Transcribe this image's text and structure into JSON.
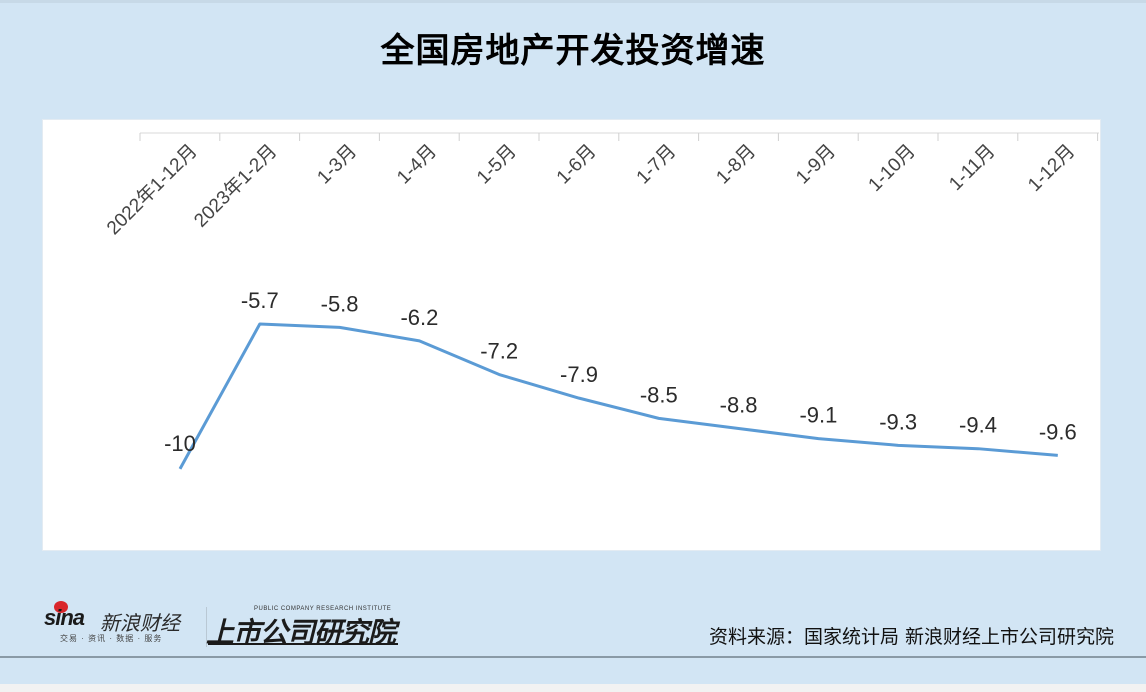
{
  "title": "全国房地产开发投资增速",
  "chart_data": {
    "type": "line",
    "title": "全国房地产开发投资增速",
    "xlabel": "",
    "ylabel": "",
    "categories": [
      "2022年1-12月",
      "2023年1-2月",
      "1-3月",
      "1-4月",
      "1-5月",
      "1-6月",
      "1-7月",
      "1-8月",
      "1-9月",
      "1-10月",
      "1-11月",
      "1-12月"
    ],
    "series": [
      {
        "name": "全国房地产开发投资增速(%)",
        "values": [
          -10,
          -5.7,
          -5.8,
          -6.2,
          -7.2,
          -7.9,
          -8.5,
          -8.8,
          -9.1,
          -9.3,
          -9.4,
          -9.6
        ],
        "color": "#5b9bd5"
      }
    ],
    "data_labels": [
      "-10",
      "-5.7",
      "-5.8",
      "-6.2",
      "-7.2",
      "-7.9",
      "-8.5",
      "-8.8",
      "-9.1",
      "-9.3",
      "-9.4",
      "-9.6"
    ],
    "x_axis_position": "top",
    "tick_label_rotation": -45,
    "grid": false,
    "legend": "none"
  },
  "footer": {
    "sina_brand": "sina",
    "sina_cn": "新浪财经",
    "sina_tagline": "交易 · 资讯 · 数据 · 服务",
    "institute_en": "PUBLIC COMPANY RESEARCH INSTITUTE",
    "institute_cn": "上市公司研究院",
    "source": "资料来源：国家统计局 新浪财经上市公司研究院"
  },
  "colors": {
    "background": "#d2e5f4",
    "plot_bg": "#ffffff",
    "line": "#5b9bd5",
    "text": "#2b2b2b"
  }
}
